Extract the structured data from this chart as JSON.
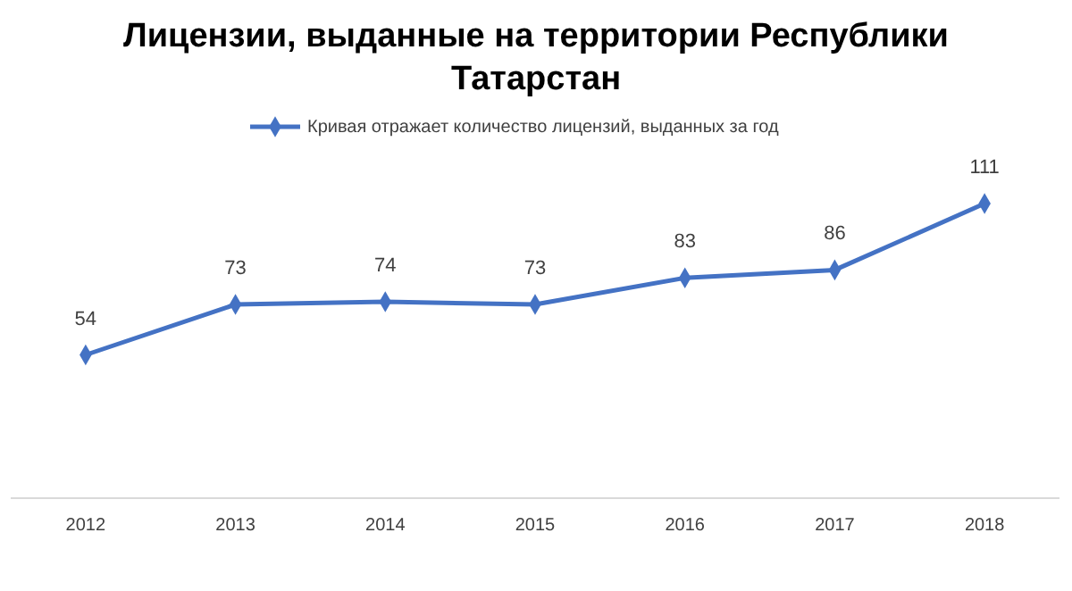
{
  "chart_data": {
    "type": "line",
    "title": "Лицензии, выданные на территории Республики Татарстан",
    "categories": [
      "2012",
      "2013",
      "2014",
      "2015",
      "2016",
      "2017",
      "2018"
    ],
    "series": [
      {
        "name": "Кривая отражает количество лицензий, выданных за год",
        "color": "#4472c4",
        "values": [
          54,
          73,
          74,
          73,
          83,
          86,
          111
        ]
      }
    ],
    "tick_labels": "x",
    "data_labels": true,
    "legend": "top",
    "marker": "diamond",
    "grid": false
  }
}
